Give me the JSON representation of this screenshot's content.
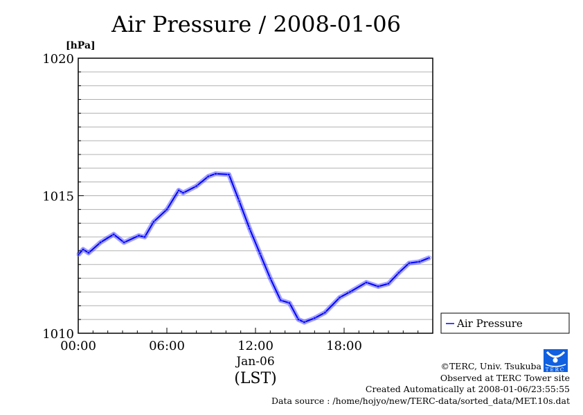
{
  "chart_data": {
    "type": "line",
    "title": "Air Pressure / 2008-01-06",
    "ylabel": "[hPa]",
    "xlabel_date": "Jan-06",
    "xlabel": "(LST)",
    "ylim": [
      1010,
      1020
    ],
    "xlim_hours": [
      0,
      24
    ],
    "yticks": [
      "1010",
      "1015",
      "1020"
    ],
    "ytick_values": [
      1010,
      1015,
      1020
    ],
    "xticks": [
      "00:00",
      "06:00",
      "12:00",
      "18:00"
    ],
    "xtick_values": [
      0,
      6,
      12,
      18
    ],
    "grid": true,
    "legend_position": "right",
    "series": [
      {
        "name": "Air Pressure",
        "color": "#0000ff",
        "x_hours": [
          0,
          0.33,
          0.7,
          1.5,
          2.4,
          3.1,
          4.1,
          4.5,
          5.1,
          6,
          6.8,
          7.1,
          8,
          8.8,
          9.3,
          10.2,
          10.9,
          11.6,
          12.3,
          13,
          13.7,
          14.3,
          14.9,
          15.3,
          16,
          16.7,
          17.7,
          18.4,
          19.5,
          20.3,
          21,
          21.7,
          22.4,
          23.1,
          23.8
        ],
        "values": [
          1012.85,
          1013.05,
          1012.92,
          1013.3,
          1013.6,
          1013.3,
          1013.55,
          1013.5,
          1014.05,
          1014.5,
          1015.2,
          1015.1,
          1015.35,
          1015.7,
          1015.8,
          1015.77,
          1014.8,
          1013.8,
          1012.9,
          1012.0,
          1011.2,
          1011.1,
          1010.5,
          1010.4,
          1010.55,
          1010.75,
          1011.3,
          1011.5,
          1011.85,
          1011.7,
          1011.8,
          1012.2,
          1012.55,
          1012.6,
          1012.75
        ]
      }
    ]
  },
  "footer": {
    "copyright": "©TERC, Univ. Tsukuba",
    "observed": "Observed at TERC Tower site",
    "created": "Created Automatically at 2008-01-06/23:55:55",
    "source": "Data source : /home/hojyo/new/TERC-data/sorted_data/MET.10s.dat",
    "logo_text": "TERC"
  }
}
